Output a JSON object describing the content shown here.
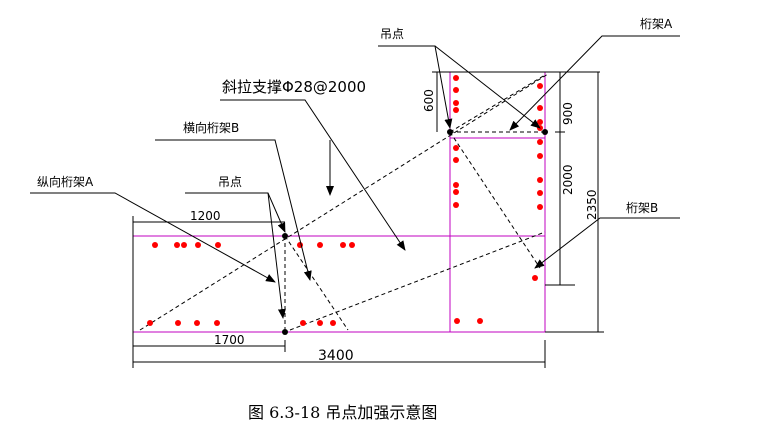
{
  "labels": {
    "hoist_point_top": "吊点",
    "truss_a": "桁架A",
    "diagonal_brace": "斜拉支撑Φ28@2000",
    "transverse_truss_b": "横向桁架B",
    "longitudinal_truss_a": "纵向桁架A",
    "hoist_point_left": "吊点",
    "truss_b": "桁架B"
  },
  "dimensions": {
    "d1200": "1200",
    "d1700": "1700",
    "d3400": "3400",
    "d600": "600",
    "d900": "900",
    "d2000": "2000",
    "d2350": "2350"
  },
  "caption": "图 6.3-18 吊点加强示意图"
}
